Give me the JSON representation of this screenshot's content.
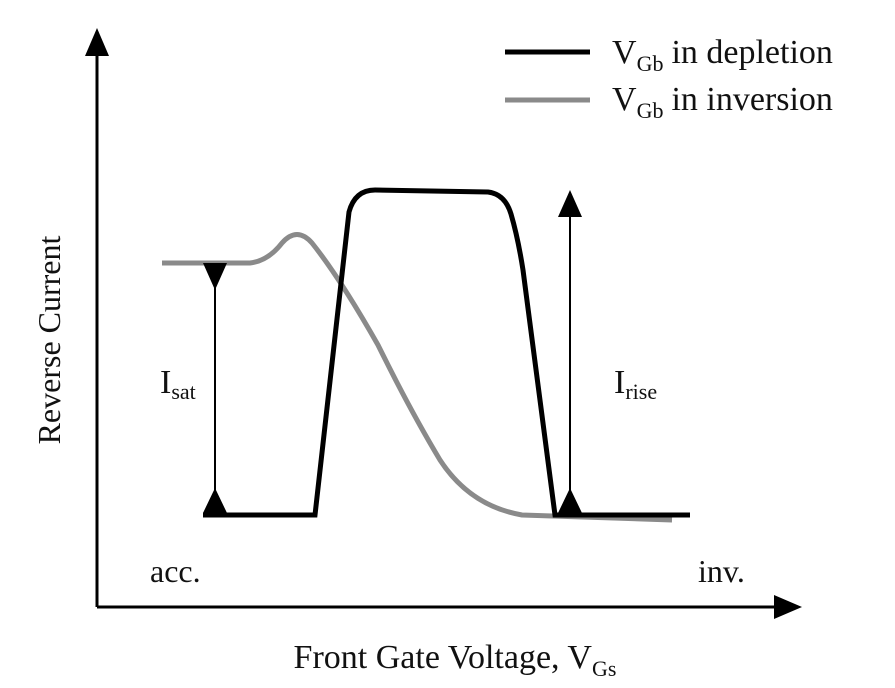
{
  "axes": {
    "y_label": "Reverse Current",
    "x_label": {
      "text": "Front Gate Voltage, V",
      "sub": "Gs"
    },
    "x_start": "acc.",
    "x_end": "inv."
  },
  "legend": [
    {
      "symbol": "V",
      "sub": "Gb",
      "text": "in depletion"
    },
    {
      "symbol": "V",
      "sub": "Gb",
      "text": "in inversion"
    }
  ],
  "annotations": [
    {
      "symbol": "I",
      "sub": "sat"
    },
    {
      "symbol": "I",
      "sub": "rise"
    }
  ]
}
